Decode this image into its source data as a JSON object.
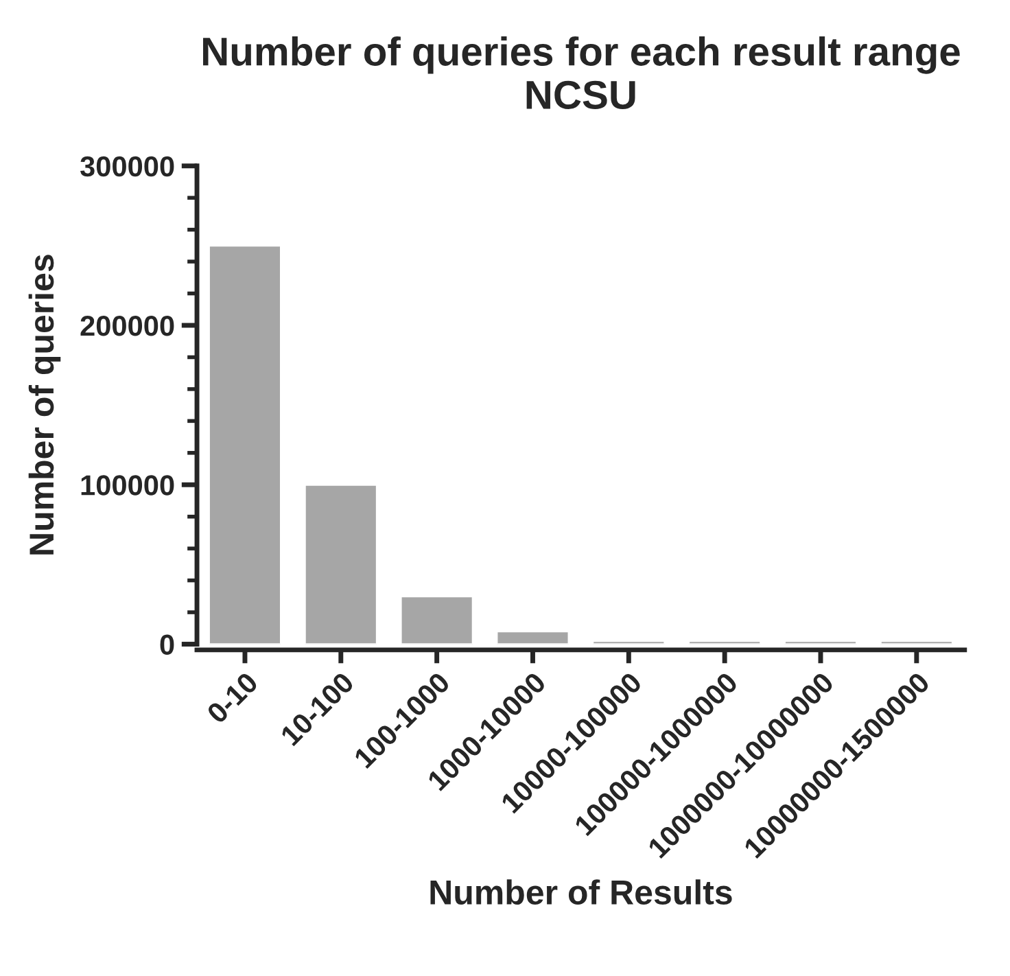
{
  "chart_data": {
    "type": "bar",
    "title": "Number of queries for each result range\nNCSU",
    "xlabel": "Number of Results",
    "ylabel": "Number of queries",
    "categories": [
      "0-10",
      "10-100",
      "100-1000",
      "1000-10000",
      "10000-100000",
      "100000-1000000",
      "1000000-10000000",
      "10000000-1500000"
    ],
    "values": [
      250000,
      100000,
      30000,
      8000,
      2000,
      2000,
      2000,
      2000
    ],
    "color": "#a6a6a6",
    "ylim": [
      0,
      300000
    ],
    "yticks": [
      0,
      {
        "value": 20000,
        "label": null
      },
      {
        "value": 40000,
        "label": null
      },
      {
        "value": 60000,
        "label": null
      },
      {
        "value": 80000,
        "label": null
      },
      100000,
      {
        "value": 120000,
        "label": null
      },
      {
        "value": 140000,
        "label": null
      },
      {
        "value": 160000,
        "label": null
      },
      {
        "value": 180000,
        "label": null
      },
      200000,
      {
        "value": 220000,
        "label": null
      },
      {
        "value": 240000,
        "label": null
      },
      {
        "value": 260000,
        "label": null
      },
      {
        "value": 280000,
        "label": null
      },
      300000
    ],
    "grid": false,
    "legend": false
  }
}
